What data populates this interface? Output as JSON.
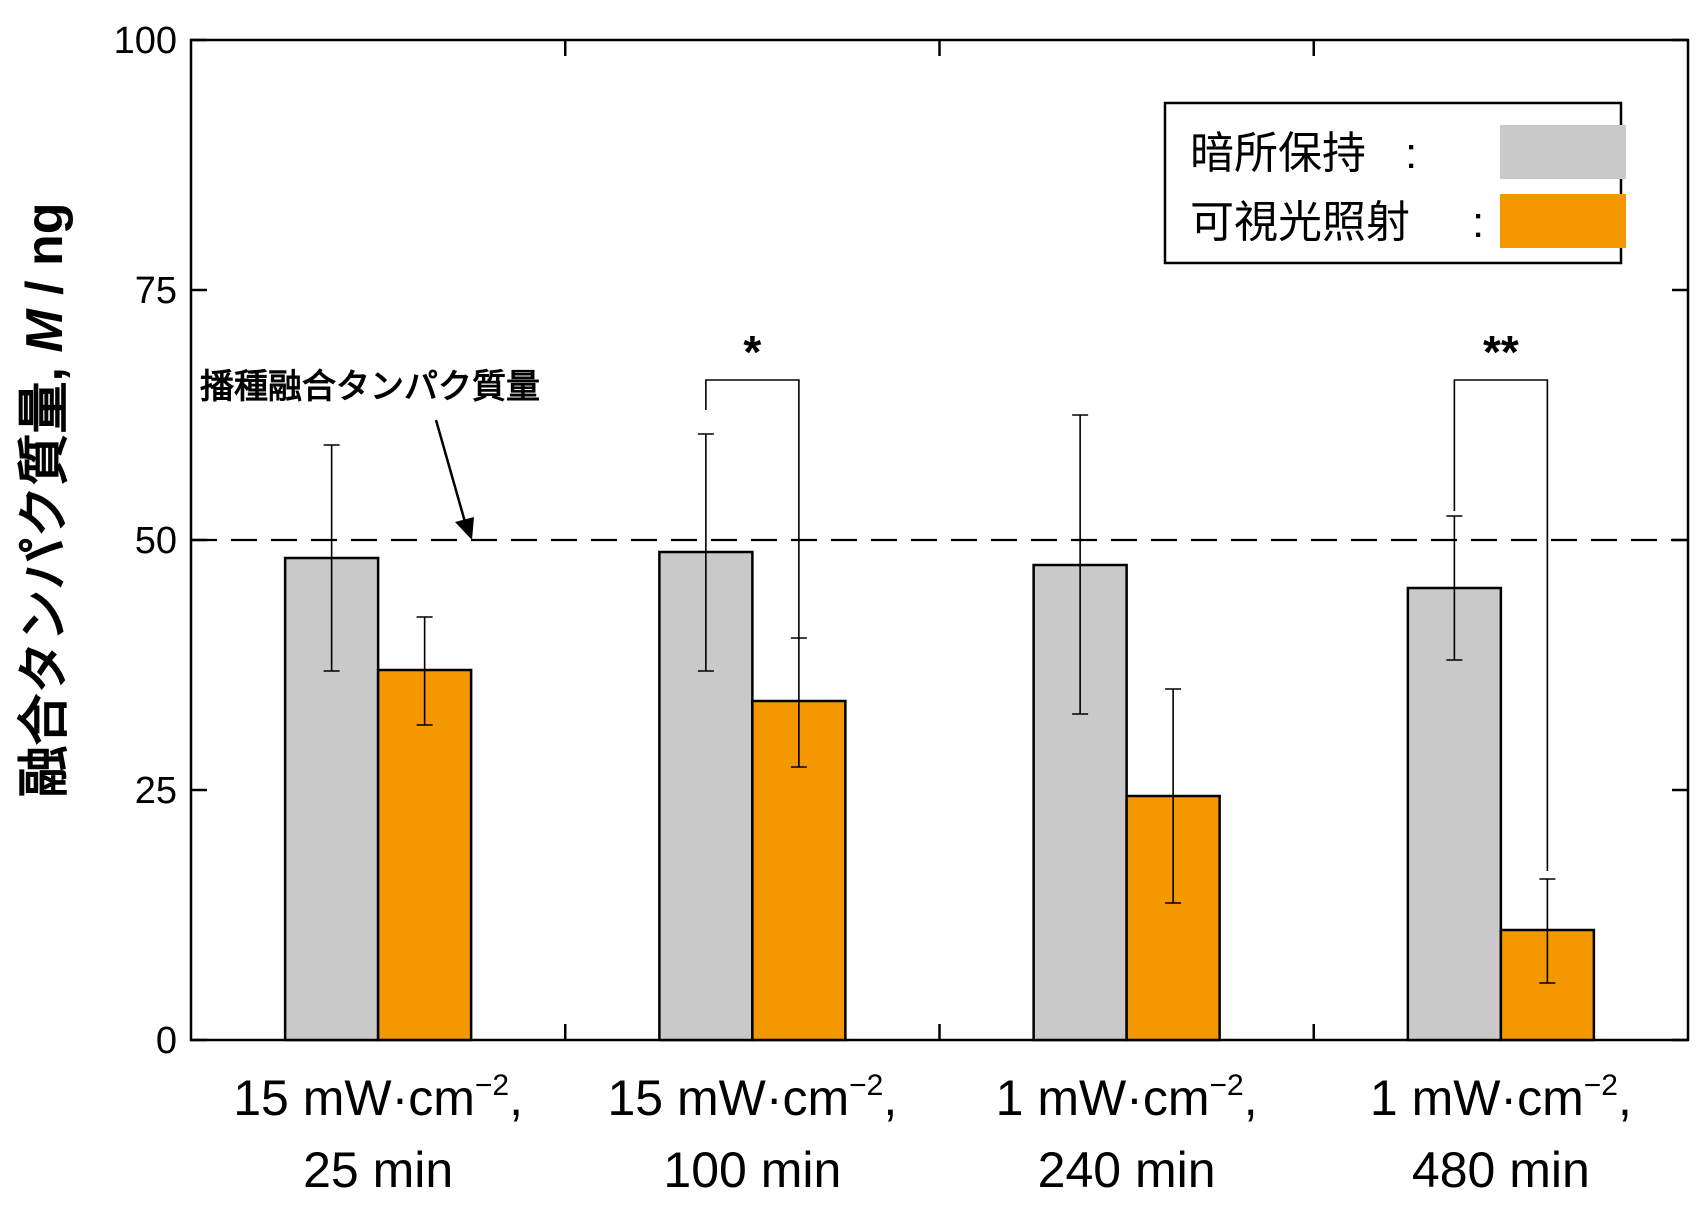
{
  "chart_data": {
    "type": "bar",
    "ylabel_main": "融合タンパク質量, ",
    "ylabel_var": "M",
    "ylabel_unit": " / ng",
    "ylim": [
      0,
      100
    ],
    "yticks": [
      "0",
      "25",
      "50",
      "75",
      "100"
    ],
    "categories": [
      {
        "line1": "15 mW·cm",
        "sup": "−2",
        "tail": ",",
        "line2": "25 min"
      },
      {
        "line1": "15 mW·cm",
        "sup": "−2",
        "tail": ",",
        "line2": "100 min"
      },
      {
        "line1": "1 mW·cm",
        "sup": "−2",
        "tail": ",",
        "line2": "240 min"
      },
      {
        "line1": "1 mW·cm",
        "sup": "−2",
        "tail": ",",
        "line2": "480 min"
      }
    ],
    "series": [
      {
        "name": "暗所保持",
        "color": "#c8c9c8",
        "values": [
          48.2,
          48.8,
          47.5,
          45.2
        ],
        "err_low": [
          36.9,
          36.9,
          32.6,
          38.0
        ],
        "err_high": [
          59.5,
          60.6,
          62.5,
          52.4
        ]
      },
      {
        "name": "可視光照射",
        "color": "#f39800",
        "values": [
          37.0,
          33.9,
          24.4,
          11.0
        ],
        "err_low": [
          31.5,
          27.3,
          13.7,
          5.7
        ],
        "err_high": [
          42.3,
          40.2,
          35.1,
          16.1
        ]
      }
    ],
    "legend": {
      "position": "top-right",
      "separator": ":"
    },
    "reference_line": {
      "value": 50,
      "label": "播種融合タンパク質量"
    },
    "significance": [
      {
        "category_index": 1,
        "label": "*",
        "left_y": 63.0,
        "right_y": 40.2,
        "top_y": 66.0
      },
      {
        "category_index": 3,
        "label": "**",
        "left_y": 52.9,
        "right_y": 16.9,
        "top_y": 66.0
      }
    ],
    "grid": false
  }
}
